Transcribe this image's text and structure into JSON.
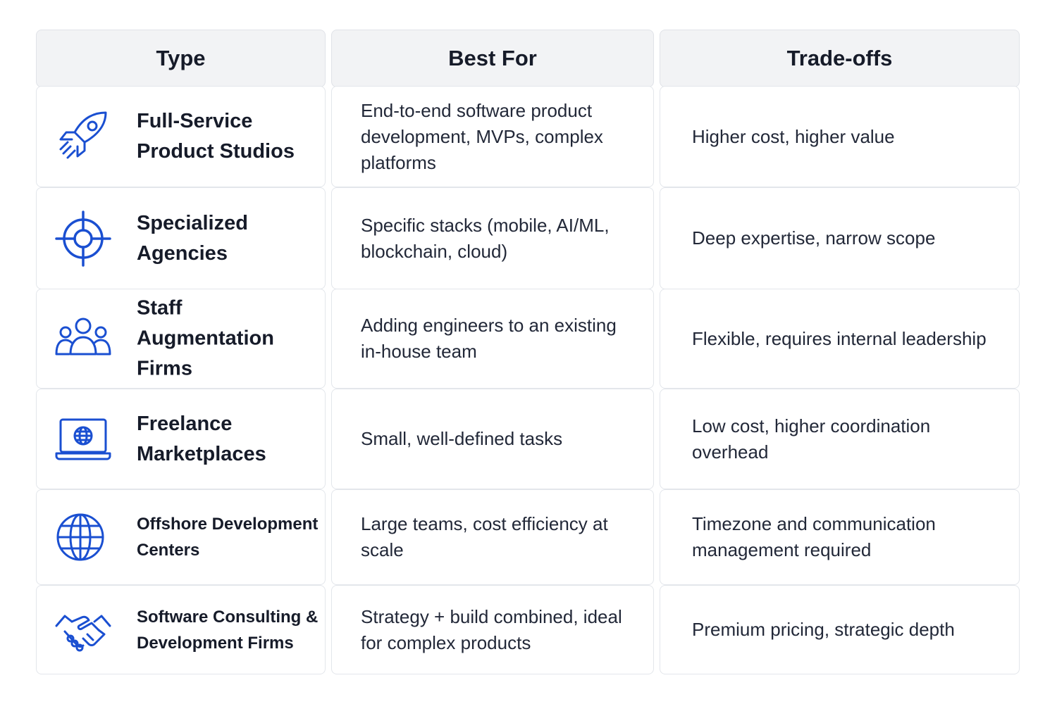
{
  "headers": {
    "type": "Type",
    "best_for": "Best For",
    "trade_offs": "Trade-offs"
  },
  "icon_color": "#1a4fd1",
  "rows": [
    {
      "icon": "rocket-icon",
      "type": "Full-Service Product Studios",
      "best_for": "End-to-end software product development, MVPs, complex platforms",
      "trade_offs": "Higher cost, higher value"
    },
    {
      "icon": "crosshair-icon",
      "type": "Specialized Agencies",
      "best_for": "Specific stacks (mobile, AI/ML, blockchain, cloud)",
      "trade_offs": "Deep expertise, narrow scope"
    },
    {
      "icon": "team-icon",
      "type": "Staff Augmentation Firms",
      "best_for": "Adding engineers to an existing in-house team",
      "trade_offs": "Flexible, requires internal leadership"
    },
    {
      "icon": "laptop-globe-icon",
      "type": "Freelance Marketplaces",
      "best_for": "Small, well-defined tasks",
      "trade_offs": "Low cost, higher coordination overhead"
    },
    {
      "icon": "globe-icon",
      "type": "Offshore Development Centers",
      "best_for": "Large teams, cost efficiency at scale",
      "trade_offs": "Timezone and communication management required"
    },
    {
      "icon": "handshake-icon",
      "type": "Software Consulting & Development Firms",
      "best_for": "Strategy + build combined, ideal for complex products",
      "trade_offs": "Premium pricing, strategic depth"
    }
  ]
}
